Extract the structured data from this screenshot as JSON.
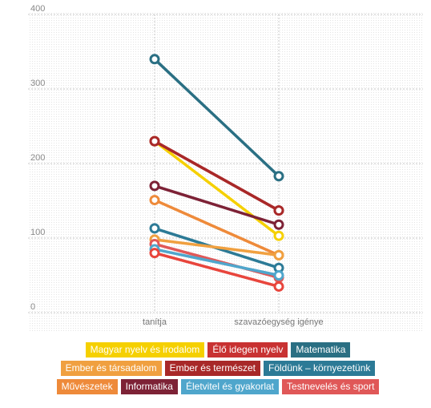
{
  "chart_data": {
    "type": "line",
    "categories": [
      "tanítja",
      "szavazóegység igénye"
    ],
    "ylim": [
      0,
      400
    ],
    "yticks": [
      0,
      100,
      200,
      300,
      400
    ],
    "grid": true,
    "legend_position": "bottom",
    "series": [
      {
        "name": "Magyar nyelv és irodalom",
        "color": "#f5d000",
        "values": [
          230,
          103
        ]
      },
      {
        "name": "Élő idegen nyelv",
        "color": "#c83232",
        "values": [
          230,
          137
        ]
      },
      {
        "name": "Matematika",
        "color": "#2a6f83",
        "values": [
          340,
          183
        ]
      },
      {
        "name": "Ember és társadalom",
        "color": "#f0a040",
        "values": [
          98,
          77
        ]
      },
      {
        "name": "Ember és természet",
        "color": "#a82828",
        "values": [
          230,
          137
        ]
      },
      {
        "name": "Földünk – környezetünk",
        "color": "#2c7a96",
        "values": [
          113,
          60
        ]
      },
      {
        "name": "Művészetek",
        "color": "#ee8a3a",
        "values": [
          151,
          77
        ]
      },
      {
        "name": "Informatika",
        "color": "#7d2236",
        "values": [
          170,
          118
        ]
      },
      {
        "name": "Életvitel és gyakorlat",
        "color": "#4fa6cc",
        "values": [
          85,
          50
        ]
      },
      {
        "name": "Testnevelés és sport",
        "color": "#e05858",
        "values": [
          92,
          47
        ]
      }
    ],
    "extra_series": [
      {
        "color": "#e8453c",
        "values": [
          80,
          35
        ]
      }
    ]
  },
  "legend_rows": [
    [
      0,
      1,
      2
    ],
    [
      3,
      4,
      5
    ],
    [
      6,
      7,
      8,
      9
    ]
  ]
}
